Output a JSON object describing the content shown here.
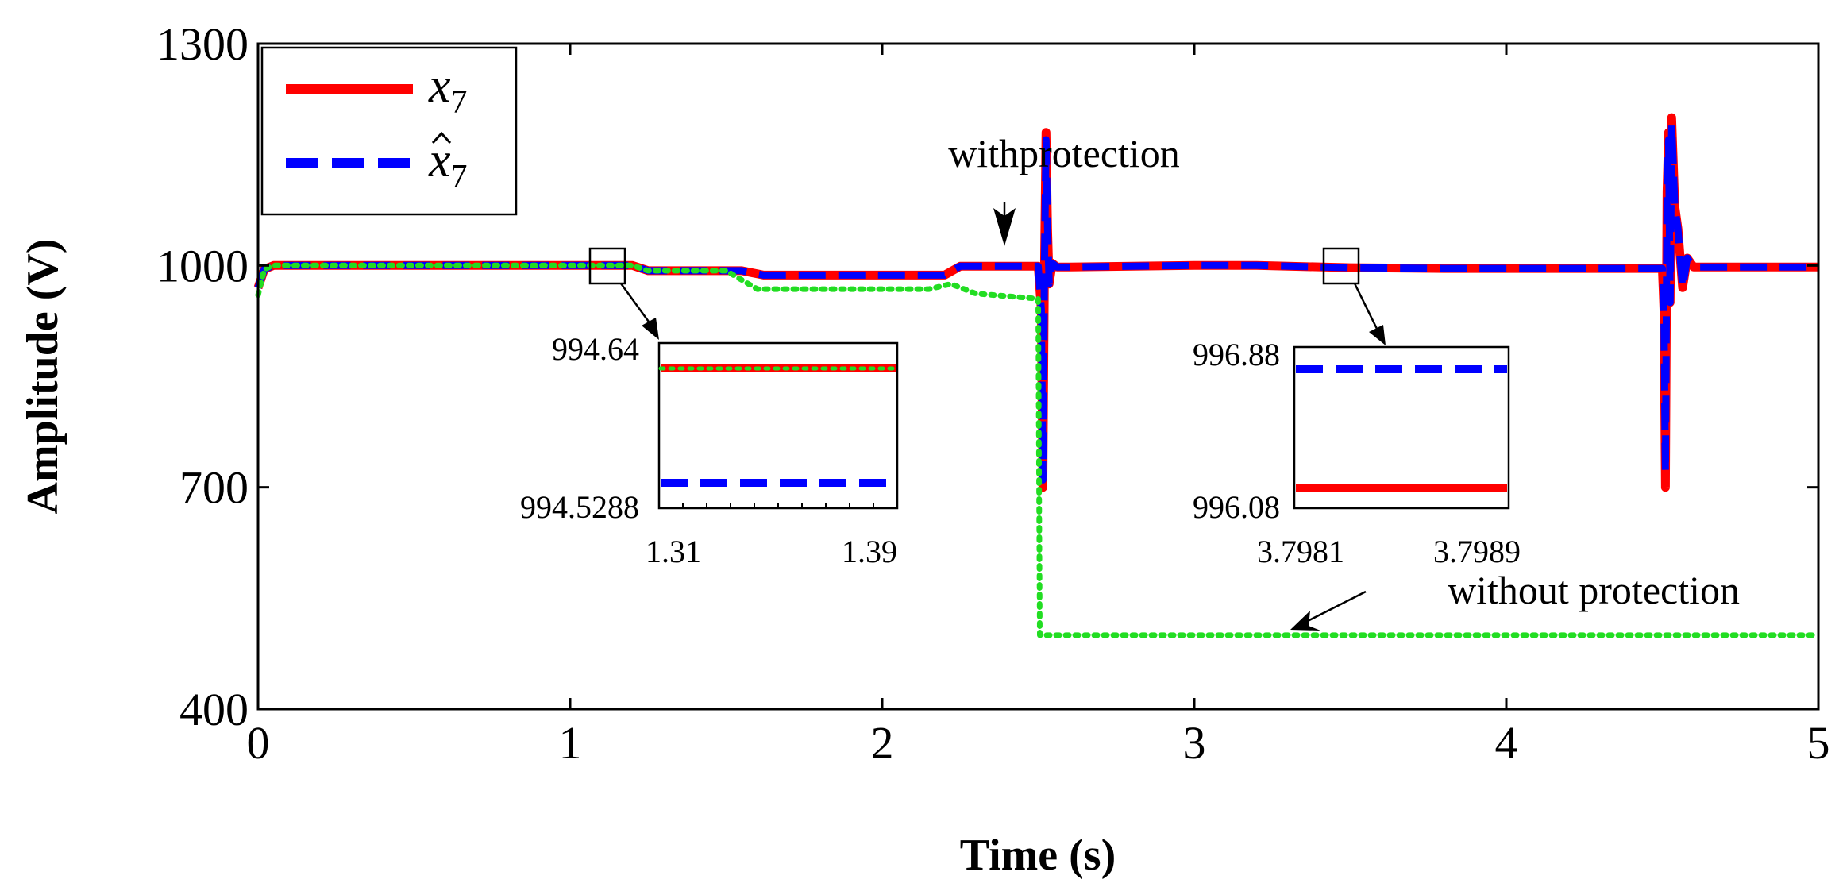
{
  "chart_data": {
    "type": "line",
    "title": "",
    "xlabel": "Time (s)",
    "ylabel": "Amplitude (V)",
    "xlim": [
      0,
      5
    ],
    "ylim": [
      400,
      1300
    ],
    "xticks": [
      "0",
      "1",
      "2",
      "3",
      "4",
      "5"
    ],
    "yticks": [
      "400",
      "700",
      "1000",
      "1300"
    ],
    "grid": false,
    "legend_position": "top-left",
    "legend": [
      {
        "base": "x",
        "sub": "7",
        "hat": false,
        "color": "#ff0000",
        "style": "solid"
      },
      {
        "base": "x",
        "sub": "7",
        "hat": true,
        "color": "#0000ff",
        "style": "dashed"
      }
    ],
    "series": [
      {
        "color": "#ff0000",
        "style": "solid",
        "x": [
          0,
          0.02,
          0.05,
          1.2,
          1.25,
          1.55,
          1.62,
          2.2,
          2.25,
          2.5,
          2.51,
          2.515,
          2.52,
          2.525,
          2.53,
          2.535,
          2.545,
          2.56,
          2.6,
          3.0,
          3.2,
          3.5,
          3.8,
          4.5,
          4.505,
          4.51,
          4.515,
          4.52,
          4.525,
          4.53,
          4.54,
          4.55,
          4.565,
          4.58,
          4.6,
          5.0
        ],
        "y": [
          970,
          995,
          1000,
          1000,
          993,
          993,
          987,
          987,
          999,
          999,
          940,
          700,
          1000,
          1180,
          1050,
          975,
          1003,
          998,
          998,
          1000,
          1000,
          997,
          996,
          996,
          940,
          700,
          1100,
          1180,
          950,
          1200,
          1080,
          1050,
          970,
          1010,
          998,
          998
        ]
      },
      {
        "color": "#0000ff",
        "style": "dashed",
        "x": [
          0,
          0.02,
          0.05,
          1.2,
          1.25,
          1.55,
          1.62,
          2.2,
          2.25,
          2.5,
          2.51,
          2.515,
          2.52,
          2.525,
          2.53,
          2.535,
          2.545,
          2.56,
          2.6,
          3.0,
          3.2,
          3.5,
          3.8,
          4.5,
          4.505,
          4.51,
          4.515,
          4.52,
          4.525,
          4.53,
          4.54,
          4.55,
          4.565,
          4.58,
          4.6,
          5.0
        ],
        "y": [
          970,
          995,
          1000,
          1000,
          993,
          993,
          987,
          987,
          999,
          999,
          940,
          710,
          1000,
          1170,
          1050,
          975,
          1003,
          998,
          998,
          1000,
          1000,
          997,
          996,
          996,
          940,
          720,
          1100,
          1170,
          950,
          1190,
          1080,
          1050,
          970,
          1010,
          998,
          998
        ]
      },
      {
        "color": "#22dd22",
        "style": "dotted",
        "x": [
          0,
          0.02,
          0.05,
          1.2,
          1.25,
          1.5,
          1.6,
          2.15,
          2.22,
          2.3,
          2.5,
          2.505,
          2.51,
          5.0
        ],
        "y": [
          960,
          995,
          1000,
          1000,
          993,
          993,
          968,
          968,
          975,
          962,
          955,
          500,
          500,
          500
        ]
      }
    ],
    "annotations": [
      {
        "text": "withprotection",
        "x": 3.17,
        "y": 1003
      },
      {
        "text": "without protection",
        "x": 3.3,
        "y": 500
      }
    ],
    "insets": [
      {
        "source_x": 1.11,
        "source_y": 993,
        "xticks": [
          "1.31",
          "1.39"
        ],
        "yticks": [
          "994.64",
          "994.5288"
        ],
        "lines": [
          {
            "color": "#ff0000",
            "style": "solid",
            "value": 994.64
          },
          {
            "color": "#22dd22",
            "style": "dotted",
            "value": 994.64
          },
          {
            "color": "#0000ff",
            "style": "dashed",
            "value": 994.5288
          }
        ]
      },
      {
        "source_x": 3.47,
        "source_y": 993,
        "xticks": [
          "3.7981",
          "3.7989"
        ],
        "yticks": [
          "996.88",
          "996.08"
        ],
        "lines": [
          {
            "color": "#0000ff",
            "style": "dashed",
            "value": 996.88
          },
          {
            "color": "#ff0000",
            "style": "solid",
            "value": 996.08
          }
        ]
      }
    ]
  }
}
